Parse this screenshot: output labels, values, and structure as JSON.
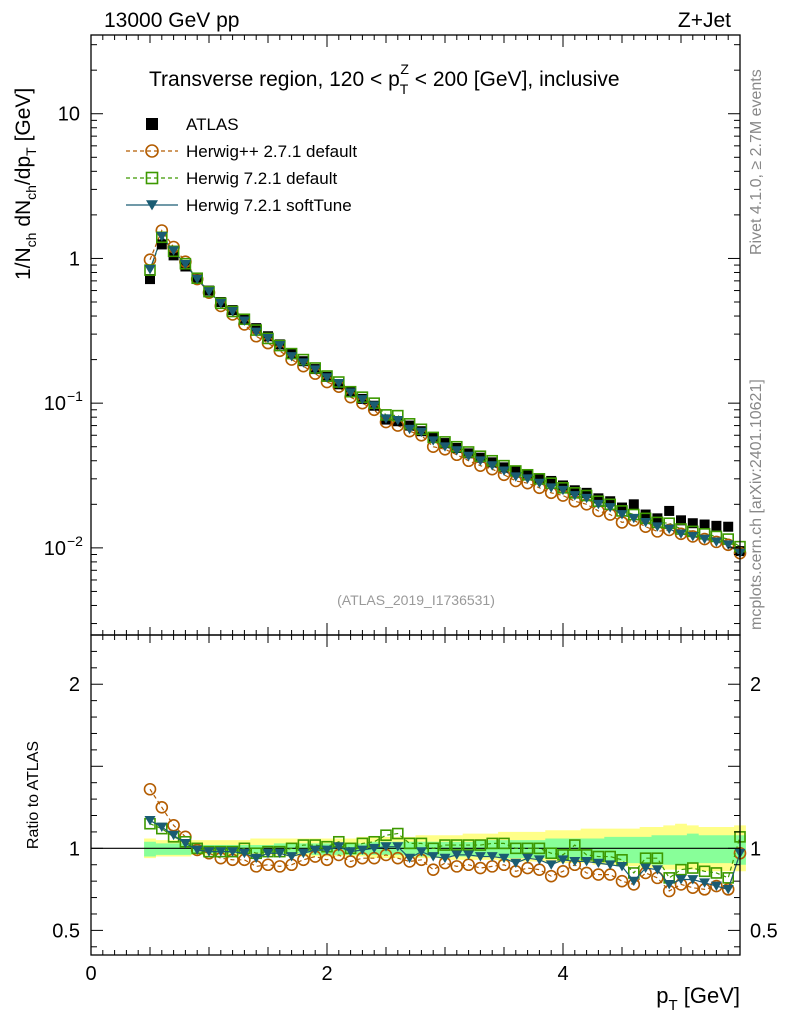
{
  "header": {
    "left": "13000 GeV pp",
    "right": "Z+Jet"
  },
  "side_labels": {
    "rivet": "Rivet 4.1.0, ≥ 2.7M events",
    "mcplots": "mcplots.cern.ch [arXiv:2401.10621]"
  },
  "chart_data": {
    "type": "scatter",
    "title_parts": {
      "prefix": "Transverse region, 120 < p",
      "sup": "Z",
      "sub": "T",
      "suffix": " < 200 [GeV], inclusive"
    },
    "analysis_id": "(ATLAS_2019_I1736531)",
    "xlabel": "p",
    "xlabel_sub": "T",
    "xlabel_unit": " [GeV]",
    "ylabel_ratio": "Ratio to ATLAS",
    "ylabel_main_parts": [
      "1/N",
      "ch",
      " dN",
      "ch",
      "/dp",
      "T",
      " [GeV]"
    ],
    "xlim": [
      0,
      5.5
    ],
    "ylim_main": [
      0.0025,
      35
    ],
    "ylim_ratio": [
      0.35,
      2.3
    ],
    "x_ticks": [
      "0",
      "2",
      "4"
    ],
    "x_tick_values": [
      0,
      2,
      4
    ],
    "y_main_ticks": [
      {
        "label": "10",
        "value": 10
      },
      {
        "label": "1",
        "value": 1
      },
      {
        "label": "10",
        "sup": "−1",
        "value": 0.1
      },
      {
        "label": "10",
        "sup": "−2",
        "value": 0.01
      }
    ],
    "y_ratio_ticks": [
      {
        "label": "2",
        "value": 2
      },
      {
        "label": "1",
        "value": 1
      },
      {
        "label": "0.5",
        "value": 0.5
      }
    ],
    "legend": [
      {
        "name": "ATLAS",
        "color": "#000000",
        "marker": "square-filled",
        "line": "none"
      },
      {
        "name": "Herwig++ 2.7.1 default",
        "color": "#b35c00",
        "marker": "circle-open",
        "line": "dashed"
      },
      {
        "name": "Herwig 7.2.1 default",
        "color": "#3d9900",
        "marker": "square-open",
        "line": "dashed"
      },
      {
        "name": "Herwig 7.2.1 softTune",
        "color": "#1a5c73",
        "marker": "triangle-down-filled",
        "line": "solid"
      }
    ],
    "x": [
      0.5,
      0.6,
      0.7,
      0.8,
      0.9,
      1.0,
      1.1,
      1.2,
      1.3,
      1.4,
      1.5,
      1.6,
      1.7,
      1.8,
      1.9,
      2.0,
      2.1,
      2.2,
      2.3,
      2.4,
      2.5,
      2.6,
      2.7,
      2.8,
      2.9,
      3.0,
      3.1,
      3.2,
      3.3,
      3.4,
      3.5,
      3.6,
      3.7,
      3.8,
      3.9,
      4.0,
      4.1,
      4.2,
      4.3,
      4.4,
      4.5,
      4.6,
      4.7,
      4.8,
      4.9,
      5.0,
      5.1,
      5.2,
      5.3,
      5.4,
      5.5
    ],
    "series": [
      {
        "name": "ATLAS",
        "values": [
          0.72,
          1.25,
          1.05,
          0.88,
          0.73,
          0.6,
          0.5,
          0.44,
          0.38,
          0.33,
          0.29,
          0.255,
          0.22,
          0.195,
          0.172,
          0.152,
          0.135,
          0.12,
          0.107,
          0.096,
          0.077,
          0.075,
          0.07,
          0.064,
          0.058,
          0.053,
          0.049,
          0.045,
          0.042,
          0.039,
          0.036,
          0.034,
          0.032,
          0.03,
          0.029,
          0.027,
          0.025,
          0.024,
          0.022,
          0.021,
          0.019,
          0.02,
          0.017,
          0.016,
          0.018,
          0.0155,
          0.0148,
          0.0145,
          0.0142,
          0.014,
          0.0095
        ]
      },
      {
        "name": "Herwig++ 2.7.1 default",
        "values": [
          0.98,
          1.56,
          1.2,
          0.95,
          0.72,
          0.58,
          0.47,
          0.41,
          0.35,
          0.29,
          0.26,
          0.23,
          0.2,
          0.18,
          0.16,
          0.14,
          0.13,
          0.11,
          0.1,
          0.09,
          0.074,
          0.07,
          0.064,
          0.06,
          0.05,
          0.048,
          0.044,
          0.04,
          0.037,
          0.035,
          0.032,
          0.029,
          0.028,
          0.026,
          0.024,
          0.023,
          0.021,
          0.02,
          0.018,
          0.017,
          0.015,
          0.0155,
          0.014,
          0.013,
          0.0133,
          0.0125,
          0.012,
          0.0115,
          0.011,
          0.0105,
          0.0092
        ]
      },
      {
        "name": "Herwig 7.2.1 default",
        "values": [
          0.83,
          1.4,
          1.12,
          0.92,
          0.73,
          0.59,
          0.49,
          0.43,
          0.38,
          0.32,
          0.28,
          0.25,
          0.22,
          0.2,
          0.175,
          0.154,
          0.14,
          0.12,
          0.11,
          0.1,
          0.083,
          0.082,
          0.072,
          0.066,
          0.058,
          0.054,
          0.05,
          0.046,
          0.043,
          0.04,
          0.037,
          0.034,
          0.032,
          0.03,
          0.028,
          0.026,
          0.024,
          0.023,
          0.021,
          0.02,
          0.018,
          0.017,
          0.016,
          0.015,
          0.0148,
          0.0135,
          0.013,
          0.0125,
          0.012,
          0.0115,
          0.0102
        ]
      },
      {
        "name": "Herwig 7.2.1 softTune",
        "values": [
          0.84,
          1.42,
          1.13,
          0.91,
          0.72,
          0.59,
          0.49,
          0.43,
          0.37,
          0.31,
          0.28,
          0.25,
          0.21,
          0.19,
          0.17,
          0.15,
          0.137,
          0.118,
          0.106,
          0.096,
          0.078,
          0.076,
          0.066,
          0.063,
          0.055,
          0.05,
          0.047,
          0.043,
          0.04,
          0.037,
          0.034,
          0.031,
          0.03,
          0.028,
          0.026,
          0.025,
          0.023,
          0.022,
          0.02,
          0.019,
          0.017,
          0.016,
          0.015,
          0.014,
          0.0135,
          0.0125,
          0.012,
          0.0115,
          0.011,
          0.0105,
          0.0092
        ]
      }
    ],
    "ratio_series": [
      {
        "name": "Herwig++ 2.7.1 default",
        "values": [
          1.36,
          1.25,
          1.14,
          1.07,
          0.99,
          0.97,
          0.94,
          0.93,
          0.93,
          0.89,
          0.9,
          0.89,
          0.9,
          0.93,
          0.95,
          0.93,
          0.96,
          0.92,
          0.94,
          0.94,
          0.96,
          0.94,
          0.92,
          0.93,
          0.87,
          0.91,
          0.89,
          0.9,
          0.88,
          0.89,
          0.9,
          0.86,
          0.88,
          0.87,
          0.83,
          0.86,
          0.9,
          0.85,
          0.84,
          0.84,
          0.8,
          0.78,
          0.85,
          0.82,
          0.74,
          0.78,
          0.76,
          0.75,
          0.77,
          0.75,
          0.97
        ]
      },
      {
        "name": "Herwig 7.2.1 default",
        "values": [
          1.15,
          1.12,
          1.07,
          1.04,
          1.0,
          0.98,
          0.98,
          0.98,
          1.0,
          0.97,
          0.98,
          0.98,
          1.0,
          1.02,
          1.02,
          1.01,
          1.04,
          1.0,
          1.03,
          1.04,
          1.08,
          1.09,
          1.03,
          1.03,
          1.0,
          1.02,
          1.02,
          1.02,
          1.02,
          1.03,
          1.03,
          1.0,
          1.0,
          1.0,
          0.97,
          0.96,
          1.02,
          0.96,
          0.95,
          0.95,
          0.93,
          0.85,
          0.94,
          0.94,
          0.82,
          0.87,
          0.88,
          0.86,
          0.85,
          0.82,
          1.07
        ]
      },
      {
        "name": "Herwig 7.2.1 softTune",
        "values": [
          1.17,
          1.13,
          1.08,
          1.03,
          0.99,
          0.98,
          0.98,
          0.98,
          0.97,
          0.94,
          0.97,
          0.97,
          0.95,
          0.97,
          0.99,
          0.99,
          1.01,
          0.98,
          0.99,
          1.0,
          1.01,
          1.01,
          0.94,
          0.98,
          0.95,
          0.94,
          0.96,
          0.96,
          0.95,
          0.95,
          0.94,
          0.91,
          0.94,
          0.93,
          0.9,
          0.93,
          0.92,
          0.92,
          0.91,
          0.9,
          0.89,
          0.8,
          0.88,
          0.87,
          0.78,
          0.81,
          0.81,
          0.79,
          0.77,
          0.75,
          0.97
        ]
      }
    ],
    "band_inner": {
      "low": [
        0.95,
        0.96,
        0.96,
        0.96,
        0.97,
        0.97,
        0.97,
        0.97,
        0.97,
        0.97,
        0.97,
        0.97,
        0.97,
        0.97,
        0.96,
        0.96,
        0.96,
        0.96,
        0.96,
        0.96,
        0.96,
        0.96,
        0.96,
        0.95,
        0.95,
        0.95,
        0.95,
        0.95,
        0.95,
        0.95,
        0.94,
        0.94,
        0.94,
        0.94,
        0.94,
        0.93,
        0.93,
        0.93,
        0.93,
        0.92,
        0.92,
        0.91,
        0.91,
        0.9,
        0.9,
        0.9,
        0.91,
        0.91,
        0.91,
        0.91,
        0.9
      ],
      "high": [
        1.04,
        1.03,
        1.03,
        1.03,
        1.03,
        1.02,
        1.02,
        1.02,
        1.02,
        1.02,
        1.02,
        1.03,
        1.03,
        1.03,
        1.03,
        1.03,
        1.03,
        1.03,
        1.03,
        1.04,
        1.04,
        1.04,
        1.04,
        1.04,
        1.04,
        1.04,
        1.04,
        1.04,
        1.05,
        1.05,
        1.05,
        1.05,
        1.05,
        1.05,
        1.06,
        1.06,
        1.06,
        1.06,
        1.06,
        1.07,
        1.07,
        1.07,
        1.07,
        1.08,
        1.08,
        1.08,
        1.09,
        1.08,
        1.08,
        1.08,
        1.08
      ]
    },
    "band_outer": {
      "low": [
        0.94,
        0.95,
        0.95,
        0.95,
        0.96,
        0.96,
        0.96,
        0.96,
        0.96,
        0.96,
        0.96,
        0.96,
        0.95,
        0.95,
        0.95,
        0.95,
        0.95,
        0.95,
        0.95,
        0.94,
        0.94,
        0.94,
        0.94,
        0.94,
        0.94,
        0.93,
        0.93,
        0.93,
        0.93,
        0.93,
        0.92,
        0.92,
        0.92,
        0.92,
        0.91,
        0.91,
        0.91,
        0.91,
        0.9,
        0.9,
        0.89,
        0.89,
        0.88,
        0.88,
        0.87,
        0.87,
        0.87,
        0.86,
        0.86,
        0.86,
        0.86
      ],
      "high": [
        1.06,
        1.05,
        1.05,
        1.05,
        1.05,
        1.05,
        1.05,
        1.05,
        1.05,
        1.06,
        1.06,
        1.06,
        1.06,
        1.06,
        1.06,
        1.06,
        1.06,
        1.06,
        1.07,
        1.07,
        1.07,
        1.07,
        1.07,
        1.08,
        1.08,
        1.08,
        1.08,
        1.09,
        1.09,
        1.09,
        1.1,
        1.1,
        1.1,
        1.1,
        1.11,
        1.11,
        1.11,
        1.12,
        1.12,
        1.12,
        1.12,
        1.12,
        1.13,
        1.13,
        1.14,
        1.15,
        1.14,
        1.13,
        1.13,
        1.13,
        1.14
      ]
    }
  }
}
